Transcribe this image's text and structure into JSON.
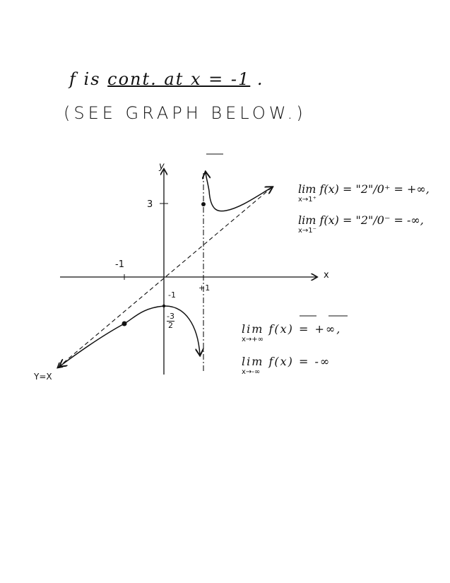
{
  "heading": {
    "prefix": "f is",
    "underlined": "cont. at x = -1",
    "suffix": ".",
    "note": "(SEE GRAPH BELOW.)"
  },
  "graph": {
    "y_axis_label": "y",
    "x_axis_label": "x",
    "tick_y_3": "3",
    "tick_x_neg1": "-1",
    "tick_x_pos1": "+1",
    "tick_y_neg1": "-1",
    "tick_y_neg3_2_num": "-3",
    "tick_y_neg3_2_den": "2",
    "asymptote_label": "Y=X"
  },
  "limits_right": [
    {
      "expr": "lim f(x) = \"2\"/0⁺ = +∞,",
      "sub": "x→1⁺"
    },
    {
      "expr": "lim f(x) = \"2\"/0⁻ = -∞,",
      "sub": "x→1⁻"
    }
  ],
  "limits_bottom": [
    {
      "expr": "lim f(x) = +∞,",
      "sub": "x→+∞"
    },
    {
      "expr": "lim f(x) = -∞",
      "sub": "x→-∞"
    }
  ]
}
